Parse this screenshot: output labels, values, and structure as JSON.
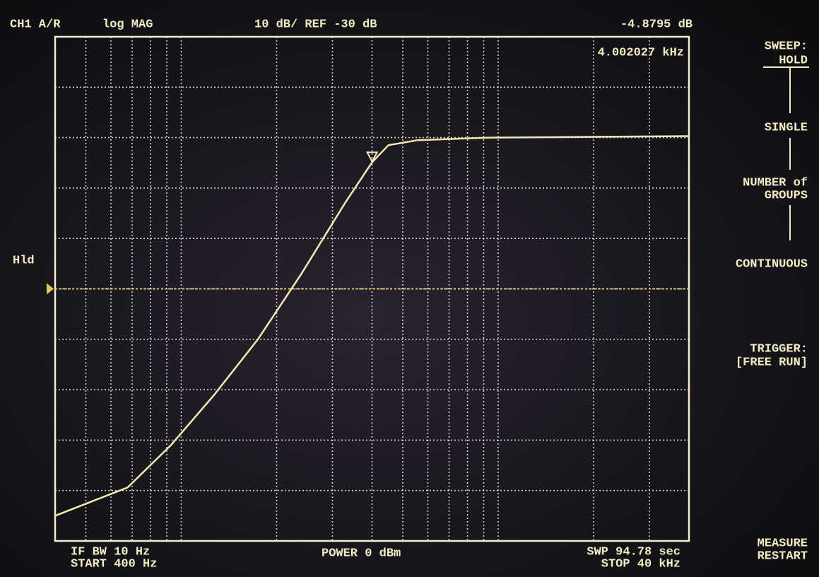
{
  "chart_data": {
    "type": "line",
    "channel": "CH1 A/R",
    "format": "log MAG",
    "scale": "10 dB/ REF -30 dB",
    "marker_value_label": "-4.8795 dB",
    "marker_freq_label": "4.002027 kHz",
    "status": "Hld",
    "footer": {
      "if_bw": "IF BW 10 Hz",
      "start": "START 400 Hz",
      "power": "POWER 0 dBm",
      "sweep_time": "SWP 94.78 sec",
      "stop": "STOP 40 kHz"
    },
    "xlim": [
      400,
      40000
    ],
    "ylim": [
      -80,
      20
    ],
    "log_x": true,
    "grid": true,
    "xgrid": [
      400,
      500,
      600,
      700,
      800,
      900,
      1000,
      2000,
      3000,
      4000,
      5000,
      6000,
      7000,
      8000,
      9000,
      10000,
      20000,
      30000,
      40000
    ],
    "ygrid": [
      -80,
      -70,
      -60,
      -50,
      -40,
      -30,
      -20,
      -10,
      0,
      10,
      20
    ],
    "ref_level": -30,
    "ref_color": "#e6c860",
    "marker": {
      "x": 4002.027,
      "y": -4.8795
    },
    "series": [
      {
        "color": "#f2e9b0",
        "x": [
          400,
          677,
          928,
          1272,
          1746,
          2395,
          3284,
          4002.027,
          4505,
          5575,
          9400,
          40000
        ],
        "values": [
          -75,
          -69.4,
          -61,
          -51,
          -40,
          -27,
          -13,
          -4.8795,
          -1.5,
          -0.5,
          0,
          0.3
        ]
      }
    ]
  },
  "softkeys": [
    [
      "SWEEP:",
      "HOLD"
    ],
    [
      "SINGLE"
    ],
    [
      "NUMBER of",
      "GROUPS"
    ],
    [
      "CONTINUOUS"
    ],
    [
      "TRIGGER:",
      "[FREE RUN]"
    ],
    [
      "MEASURE",
      "RESTART"
    ]
  ]
}
